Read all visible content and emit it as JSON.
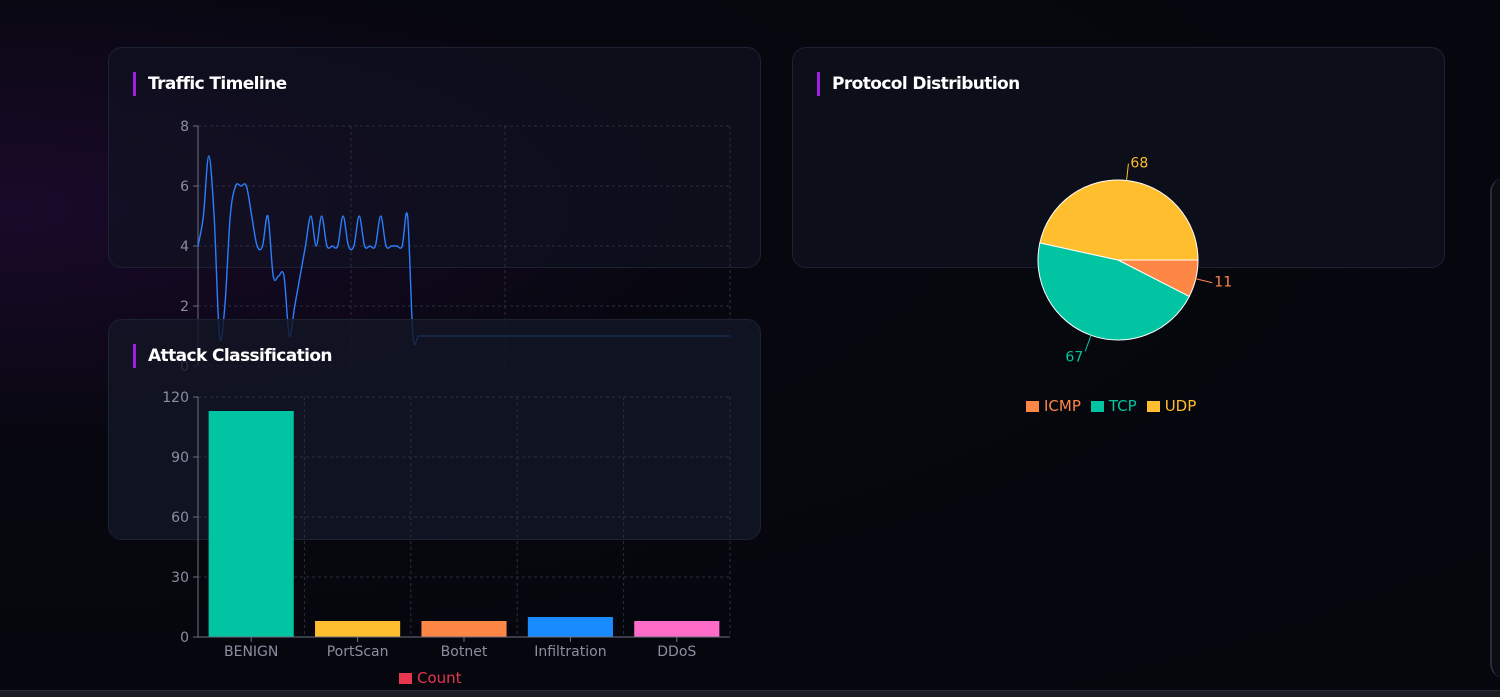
{
  "cards": {
    "timeline_title": "Traffic Timeline",
    "protocol_title": "Protocol Distribution",
    "attack_title": "Attack Classification"
  },
  "chart_data": [
    {
      "type": "line",
      "title": "Traffic Timeline",
      "yticks": [
        "0",
        "2",
        "4",
        "6",
        "8"
      ],
      "ylim": [
        0,
        8
      ],
      "x": [
        0,
        1,
        2,
        3,
        4,
        5,
        6,
        7,
        8,
        9,
        10,
        11,
        12,
        13,
        14,
        15,
        16,
        17,
        18,
        19,
        20,
        21,
        22,
        23,
        24,
        25,
        26,
        27,
        28,
        29,
        30,
        31,
        32,
        33,
        34,
        35,
        36,
        37,
        38,
        39,
        40,
        41,
        42,
        43,
        44,
        45,
        46,
        47,
        48,
        49,
        50,
        51,
        52,
        53,
        54,
        55,
        56,
        57,
        58,
        59,
        60,
        61,
        62,
        63,
        64,
        65,
        66,
        67,
        68,
        69,
        70,
        71,
        72,
        73,
        74,
        75,
        76,
        77,
        78,
        79,
        80,
        81,
        82,
        83,
        84,
        85,
        86,
        87,
        88,
        89,
        90,
        91,
        92,
        93,
        94,
        95,
        96,
        97,
        98,
        99
      ],
      "values": [
        4,
        5,
        7,
        5,
        1,
        2,
        5,
        6,
        6,
        6,
        5,
        4,
        4,
        5,
        3,
        3,
        3,
        1,
        2,
        3,
        4,
        5,
        4,
        5,
        4,
        4,
        4,
        5,
        4,
        4,
        5,
        4,
        4,
        4,
        5,
        4,
        4,
        4,
        4,
        5,
        1,
        1,
        1,
        1,
        1,
        1,
        1,
        1,
        1,
        1,
        1,
        1,
        1,
        1,
        1,
        1,
        1,
        1,
        1,
        1,
        1,
        1,
        1,
        1,
        1,
        1,
        1,
        1,
        1,
        1,
        1,
        1,
        1,
        1,
        1,
        1,
        1,
        1,
        1,
        1,
        1,
        1,
        1,
        1,
        1,
        1,
        1,
        1,
        1,
        1,
        1,
        1,
        1,
        1,
        1,
        1,
        1,
        1,
        1,
        1
      ],
      "color": "#2a7fff",
      "grid": true
    },
    {
      "type": "pie",
      "title": "Protocol Distribution",
      "slices": [
        {
          "label": "ICMP",
          "value": 11,
          "color": "#ff8746"
        },
        {
          "label": "TCP",
          "value": 67,
          "color": "#00c4a2"
        },
        {
          "label": "UDP",
          "value": 68,
          "color": "#ffbe2e"
        }
      ],
      "legend_position": "bottom"
    },
    {
      "type": "bar",
      "title": "Attack Classification",
      "categories": [
        "BENIGN",
        "PortScan",
        "Botnet",
        "Infiltration",
        "DDoS"
      ],
      "values": [
        113,
        8,
        8,
        10,
        8
      ],
      "colors": [
        "#00c4a2",
        "#ffbe2e",
        "#ff8746",
        "#1a8bff",
        "#ff6cc8"
      ],
      "yticks": [
        "0",
        "30",
        "60",
        "90",
        "120"
      ],
      "ylim": [
        0,
        120
      ],
      "series_name": "Count",
      "legend_color": "#e8364f",
      "legend_position": "bottom",
      "grid": true
    }
  ]
}
